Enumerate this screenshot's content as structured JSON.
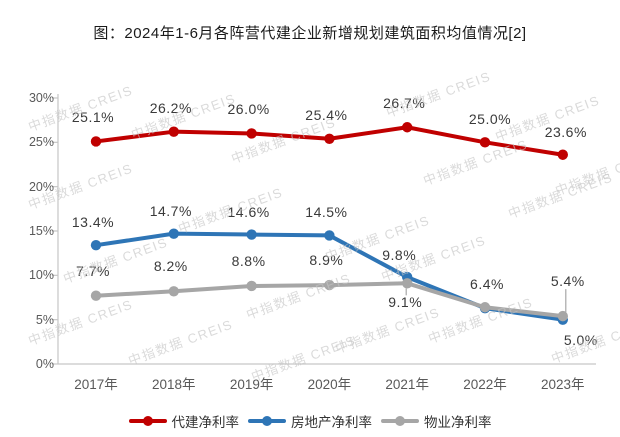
{
  "title": "图：2024年1-6月各阵营代建企业新增规划建筑面积均值情况[2]",
  "watermark_text": "中指数据 CREIS",
  "colors": {
    "axis": "#c6c6c6",
    "tick_text": "#595959",
    "data_label_text": "#3a3a3a",
    "watermark": "#c5c5c5",
    "series_red": "#c00000",
    "series_blue": "#2e75b6",
    "series_gray": "#a6a6a6"
  },
  "chart_data": {
    "type": "line",
    "title": "图：2024年1-6月各阵营代建企业新增规划建筑面积均值情况[2]",
    "categories": [
      "2017年",
      "2018年",
      "2019年",
      "2020年",
      "2021年",
      "2022年",
      "2023年"
    ],
    "series": [
      {
        "name": "代建净利率",
        "color": "#c00000",
        "values": [
          25.1,
          26.2,
          26.0,
          25.4,
          26.7,
          25.0,
          23.6
        ],
        "point_labels": [
          "25.1%",
          "26.2%",
          "26.0%",
          "25.4%",
          "26.7%",
          "25.0%",
          "23.6%"
        ]
      },
      {
        "name": "房地产净利率",
        "color": "#2e75b6",
        "values": [
          13.4,
          14.7,
          14.6,
          14.5,
          9.8,
          6.3,
          5.0
        ],
        "point_labels": [
          "13.4%",
          "14.7%",
          "14.6%",
          "14.5%",
          "9.8%",
          null,
          "5.0%"
        ]
      },
      {
        "name": "物业净利率",
        "color": "#a6a6a6",
        "values": [
          7.7,
          8.2,
          8.8,
          8.9,
          9.1,
          6.4,
          5.4
        ],
        "point_labels": [
          "7.7%",
          "8.2%",
          "8.8%",
          "8.9%",
          "9.1%",
          "6.4%",
          "5.4%"
        ]
      }
    ],
    "ylim": [
      0,
      30
    ],
    "ytick_step": 5,
    "yticks": [
      "0%",
      "5%",
      "10%",
      "15%",
      "20%",
      "25%",
      "30%"
    ],
    "grid": false,
    "legend_position": "bottom"
  }
}
